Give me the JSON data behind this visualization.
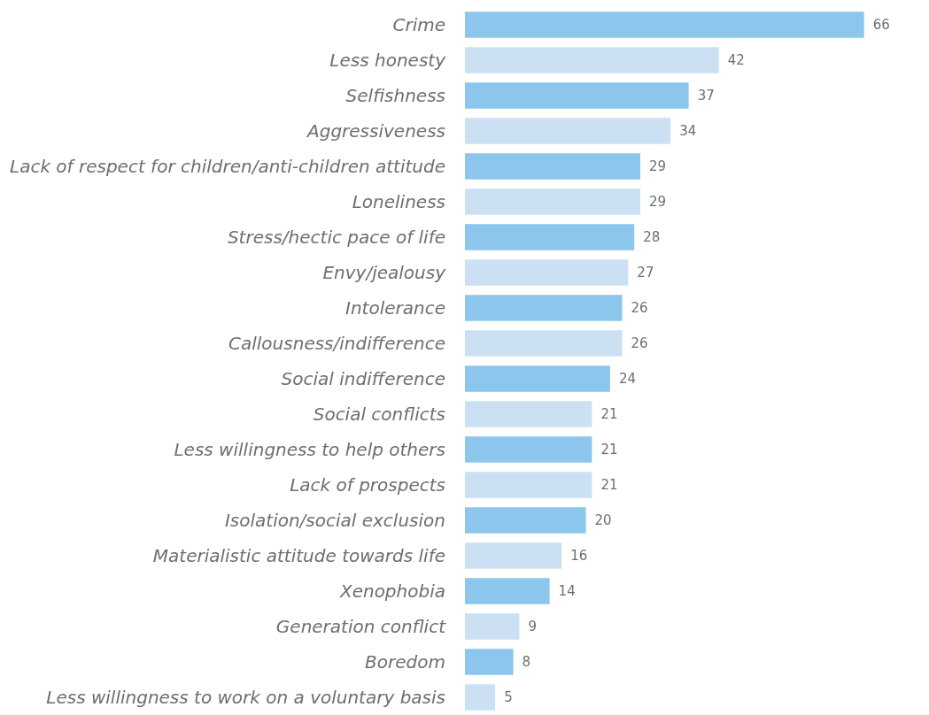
{
  "chart_data": {
    "type": "bar",
    "orientation": "horizontal",
    "data_labels": true,
    "categories": [
      "Crime",
      "Less honesty",
      "Selfishness",
      "Aggressiveness",
      "Lack of respect for children/anti-children attitude",
      "Loneliness",
      "Stress/hectic pace of life",
      "Envy/jealousy",
      "Intolerance",
      "Callousness/indifference",
      "Social indifference",
      "Social conflicts",
      "Less willingness to help others",
      "Lack of prospects",
      "Isolation/social exclusion",
      "Materialistic attitude towards life",
      "Xenophobia",
      "Generation conflict",
      "Boredom",
      "Less willingness to work on a voluntary basis"
    ],
    "values": [
      66,
      42,
      37,
      34,
      29,
      29,
      28,
      27,
      26,
      26,
      24,
      21,
      21,
      21,
      20,
      16,
      14,
      9,
      8,
      5
    ],
    "colors": [
      "#8dc6ec",
      "#cbe1f3",
      "#8dc6ec",
      "#cbe1f3",
      "#8dc6ec",
      "#cbe1f3",
      "#8dc6ec",
      "#cbe1f3",
      "#8dc6ec",
      "#cbe1f3",
      "#8dc6ec",
      "#cbe1f3",
      "#8dc6ec",
      "#cbe1f3",
      "#8dc6ec",
      "#cbe1f3",
      "#8dc6ec",
      "#cbe1f3",
      "#8dc6ec",
      "#cbe1f3"
    ]
  }
}
